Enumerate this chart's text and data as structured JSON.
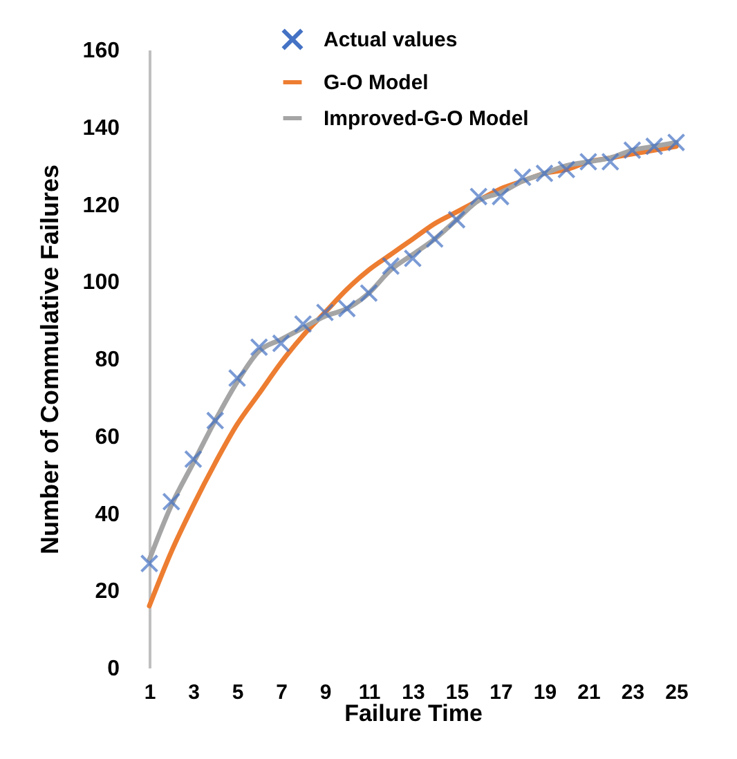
{
  "chart_data": {
    "type": "line",
    "xlabel": "Failure Time",
    "ylabel": "Number of Commulative Failures",
    "x": [
      1,
      2,
      3,
      4,
      5,
      6,
      7,
      8,
      9,
      10,
      11,
      12,
      13,
      14,
      15,
      16,
      17,
      18,
      19,
      20,
      21,
      22,
      23,
      24,
      25
    ],
    "xlim": [
      1,
      25
    ],
    "xticks": [
      1,
      3,
      5,
      7,
      9,
      11,
      13,
      15,
      17,
      19,
      21,
      23,
      25
    ],
    "ylim": [
      0,
      160
    ],
    "yticks": [
      0,
      20,
      40,
      60,
      80,
      100,
      120,
      140,
      160
    ],
    "grid": false,
    "legend": "top",
    "series": [
      {
        "name": "Actual values",
        "type": "scatter",
        "marker": "cross",
        "color": "#4472c4",
        "values": [
          27,
          43,
          54,
          64,
          75,
          83,
          84,
          89,
          92,
          93,
          97,
          104,
          106,
          111,
          116,
          122,
          122,
          127,
          128,
          129,
          131,
          131,
          134,
          135,
          136
        ]
      },
      {
        "name": "G-O Model",
        "type": "line",
        "color": "#ed7d31",
        "values": [
          16,
          30,
          42,
          53,
          63,
          71,
          79,
          86,
          92,
          98,
          103,
          107,
          111,
          115,
          118,
          121,
          124,
          126,
          128,
          129,
          131,
          132,
          133,
          134,
          135
        ]
      },
      {
        "name": "Improved-G-O Model",
        "type": "line",
        "color": "#a5a5a5",
        "values": [
          28,
          42,
          53,
          64,
          74,
          82,
          85,
          88,
          91,
          93,
          97,
          103,
          107,
          111,
          116,
          121,
          123,
          126,
          128,
          130,
          131,
          132,
          134,
          135,
          136
        ]
      }
    ]
  }
}
